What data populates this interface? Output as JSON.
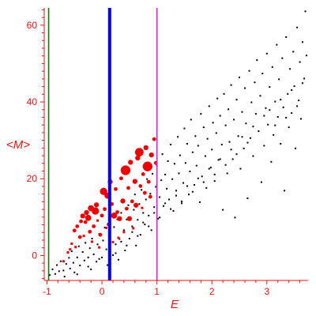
{
  "chart_data": {
    "type": "scatter",
    "title": "",
    "xlabel": "E",
    "ylabel": "<M>",
    "xlim": [
      -1.05,
      3.75
    ],
    "ylim": [
      -6.5,
      64.5
    ],
    "x_ticks": [
      -1,
      0,
      1,
      2,
      3
    ],
    "y_ticks": [
      0,
      20,
      40,
      60
    ],
    "grid": false,
    "legend": "none",
    "colors": {
      "axis": "#ee1111",
      "highlight_points": "#ee0000",
      "black_points": "#000000",
      "green_line": "#117711",
      "blue_line": "#0000ee",
      "magenta_line": "#ee11ee"
    },
    "vertical_lines": [
      {
        "x": -0.97,
        "color": "#117711",
        "width": "thin"
      },
      {
        "x": 0.14,
        "color": "#0000ee",
        "width": "thick"
      },
      {
        "x": 1.0,
        "color": "#ee11ee",
        "width": "thin"
      }
    ],
    "series": [
      {
        "color": "#ee0000",
        "points": [
          [
            -0.7,
            -1.5,
            1
          ],
          [
            -0.62,
            0.8,
            1
          ],
          [
            -0.58,
            1.6,
            1
          ],
          [
            -0.55,
            3.1,
            1
          ],
          [
            -0.5,
            6.5,
            2
          ],
          [
            -0.48,
            2.2,
            1
          ],
          [
            -0.45,
            7.6,
            2
          ],
          [
            -0.4,
            4.8,
            2
          ],
          [
            -0.38,
            8.9,
            2
          ],
          [
            -0.35,
            10.3,
            3
          ],
          [
            -0.33,
            5.1,
            1
          ],
          [
            -0.3,
            8.7,
            2
          ],
          [
            -0.28,
            11.2,
            3
          ],
          [
            -0.25,
            9.8,
            4
          ],
          [
            -0.22,
            6.2,
            2
          ],
          [
            -0.2,
            12.3,
            4
          ],
          [
            -0.18,
            3.6,
            1
          ],
          [
            -0.15,
            7.6,
            2
          ],
          [
            -0.12,
            11.6,
            5
          ],
          [
            -0.1,
            13.2,
            3
          ],
          [
            -0.08,
            9.1,
            1
          ],
          [
            -0.05,
            2.1,
            1
          ],
          [
            -0.03,
            5.4,
            2
          ],
          [
            0.0,
            10.4,
            2
          ],
          [
            0.03,
            16.7,
            5
          ],
          [
            0.05,
            12.1,
            2
          ],
          [
            0.08,
            7.2,
            1
          ],
          [
            0.1,
            15.6,
            4
          ],
          [
            0.12,
            8.1,
            2
          ],
          [
            0.15,
            19.2,
            3
          ],
          [
            0.18,
            13.4,
            2
          ],
          [
            0.2,
            3.5,
            1
          ],
          [
            0.22,
            10.4,
            4
          ],
          [
            0.25,
            17.3,
            2
          ],
          [
            0.28,
            11.3,
            2
          ],
          [
            0.3,
            4.6,
            1
          ],
          [
            0.32,
            9.6,
            3
          ],
          [
            0.35,
            20.1,
            2
          ],
          [
            0.38,
            14.2,
            3
          ],
          [
            0.4,
            6.1,
            1
          ],
          [
            0.43,
            22.2,
            7
          ],
          [
            0.45,
            12.2,
            2
          ],
          [
            0.48,
            17.6,
            2
          ],
          [
            0.5,
            9.6,
            3
          ],
          [
            0.52,
            24.3,
            3
          ],
          [
            0.55,
            14.1,
            2
          ],
          [
            0.57,
            7.1,
            1
          ],
          [
            0.6,
            19.3,
            3
          ],
          [
            0.62,
            13.1,
            3
          ],
          [
            0.65,
            25.4,
            3
          ],
          [
            0.68,
            26.9,
            6
          ],
          [
            0.7,
            18.1,
            2
          ],
          [
            0.73,
            12.4,
            1
          ],
          [
            0.75,
            21.2,
            2
          ],
          [
            0.78,
            16.3,
            2
          ],
          [
            0.8,
            28.1,
            3
          ],
          [
            0.83,
            23.2,
            7
          ],
          [
            0.85,
            19.2,
            2
          ],
          [
            0.88,
            15.3,
            2
          ],
          [
            0.9,
            26.2,
            3
          ],
          [
            0.95,
            30.3,
            2
          ],
          [
            0.98,
            24.1,
            2
          ]
        ]
      },
      {
        "color": "#000000",
        "points": [
          [
            -0.95,
            -5.1
          ],
          [
            -0.9,
            -3.6
          ],
          [
            -0.85,
            -4.8
          ],
          [
            -0.82,
            -2.5
          ],
          [
            -0.78,
            -4.1
          ],
          [
            -0.75,
            -1.5
          ],
          [
            -0.7,
            -3.9
          ],
          [
            -0.68,
            -5.5
          ],
          [
            -0.65,
            -2.2
          ],
          [
            -0.6,
            -0.6
          ],
          [
            -0.58,
            -3.4
          ],
          [
            -0.55,
            1.1
          ],
          [
            -0.52,
            -1.9
          ],
          [
            -0.5,
            -4.4
          ],
          [
            -0.45,
            -0.5
          ],
          [
            -0.42,
            2.4
          ],
          [
            -0.4,
            -2.6
          ],
          [
            -0.35,
            0.9
          ],
          [
            -0.32,
            -1.3
          ],
          [
            -0.3,
            3.3
          ],
          [
            -0.25,
            -0.5
          ],
          [
            -0.22,
            1.9
          ],
          [
            -0.2,
            -3.6
          ],
          [
            -0.18,
            4.4
          ],
          [
            -0.15,
            0.3
          ],
          [
            -0.1,
            -1.6
          ],
          [
            -0.08,
            2.9
          ],
          [
            -0.05,
            5.6
          ],
          [
            0.0,
            -0.5
          ],
          [
            0.02,
            3.9
          ],
          [
            0.05,
            7.3
          ],
          [
            0.08,
            1.6
          ],
          [
            0.1,
            -2.5
          ],
          [
            0.15,
            5.1
          ],
          [
            0.2,
            0.1
          ],
          [
            0.22,
            7.4
          ],
          [
            0.25,
            2.9
          ],
          [
            0.28,
            9.4
          ],
          [
            0.3,
            -1.1
          ],
          [
            0.32,
            4.3
          ],
          [
            0.35,
            11.1
          ],
          [
            0.4,
            6.6
          ],
          [
            0.42,
            1.3
          ],
          [
            0.45,
            9.4
          ],
          [
            0.48,
            13.1
          ],
          [
            0.5,
            4.4
          ],
          [
            0.55,
            7.6
          ],
          [
            0.58,
            11.9
          ],
          [
            0.6,
            15.9
          ],
          [
            0.62,
            2.6
          ],
          [
            0.65,
            9.3
          ],
          [
            0.68,
            13.4
          ],
          [
            0.7,
            5.4
          ],
          [
            0.72,
            17.1
          ],
          [
            0.75,
            11.1
          ],
          [
            0.78,
            8.1
          ],
          [
            0.8,
            14.6
          ],
          [
            0.82,
            19.9
          ],
          [
            0.85,
            10.4
          ],
          [
            0.88,
            16.1
          ],
          [
            0.9,
            6.6
          ],
          [
            0.92,
            21.3
          ],
          [
            0.95,
            12.6
          ],
          [
            0.98,
            17.9
          ],
          [
            1.0,
            23.4
          ],
          [
            1.02,
            9.6
          ],
          [
            1.05,
            15.2
          ],
          [
            1.08,
            19.6
          ],
          [
            1.1,
            26.4
          ],
          [
            1.12,
            12.9
          ],
          [
            1.15,
            21.1
          ],
          [
            1.18,
            17.4
          ],
          [
            1.2,
            24.6
          ],
          [
            1.22,
            14.6
          ],
          [
            1.25,
            28.9
          ],
          [
            1.28,
            19.9
          ],
          [
            1.3,
            11.6
          ],
          [
            1.32,
            23.9
          ],
          [
            1.35,
            16.9
          ],
          [
            1.38,
            30.9
          ],
          [
            1.4,
            21.4
          ],
          [
            1.42,
            26.1
          ],
          [
            1.45,
            13.6
          ],
          [
            1.48,
            18.9
          ],
          [
            1.5,
            33.1
          ],
          [
            1.52,
            24.1
          ],
          [
            1.55,
            29.1
          ],
          [
            1.58,
            15.9
          ],
          [
            1.6,
            21.9
          ],
          [
            1.62,
            35.4
          ],
          [
            1.65,
            26.9
          ],
          [
            1.68,
            18.4
          ],
          [
            1.7,
            31.1
          ],
          [
            1.72,
            23.4
          ],
          [
            1.75,
            28.6
          ],
          [
            1.78,
            13.9
          ],
          [
            1.8,
            36.9
          ],
          [
            1.82,
            20.6
          ],
          [
            1.85,
            33.4
          ],
          [
            1.88,
            25.9
          ],
          [
            1.9,
            17.6
          ],
          [
            1.92,
            30.4
          ],
          [
            1.95,
            38.9
          ],
          [
            1.98,
            22.9
          ],
          [
            2.0,
            27.6
          ],
          [
            2.02,
            34.6
          ],
          [
            2.05,
            19.4
          ],
          [
            2.08,
            31.9
          ],
          [
            2.1,
            40.9
          ],
          [
            2.12,
            24.9
          ],
          [
            2.15,
            36.4
          ],
          [
            2.18,
            28.9
          ],
          [
            2.2,
            11.9
          ],
          [
            2.22,
            42.1
          ],
          [
            2.25,
            33.9
          ],
          [
            2.28,
            21.4
          ],
          [
            2.3,
            38.1
          ],
          [
            2.32,
            29.6
          ],
          [
            2.35,
            44.4
          ],
          [
            2.38,
            25.1
          ],
          [
            2.4,
            35.4
          ],
          [
            2.42,
            9.9
          ],
          [
            2.45,
            40.6
          ],
          [
            2.48,
            31.1
          ],
          [
            2.5,
            46.4
          ],
          [
            2.52,
            22.6
          ],
          [
            2.55,
            37.4
          ],
          [
            2.58,
            27.9
          ],
          [
            2.6,
            43.6
          ],
          [
            2.62,
            34.4
          ],
          [
            2.65,
            14.9
          ],
          [
            2.68,
            48.1
          ],
          [
            2.7,
            30.6
          ],
          [
            2.72,
            39.9
          ],
          [
            2.75,
            25.9
          ],
          [
            2.78,
            45.1
          ],
          [
            2.8,
            36.9
          ],
          [
            2.82,
            50.9
          ],
          [
            2.85,
            32.4
          ],
          [
            2.88,
            41.6
          ],
          [
            2.9,
            19.1
          ],
          [
            2.92,
            47.4
          ],
          [
            2.95,
            28.6
          ],
          [
            2.98,
            38.4
          ],
          [
            3.0,
            52.6
          ],
          [
            3.02,
            34.1
          ],
          [
            3.05,
            43.9
          ],
          [
            3.08,
            24.4
          ],
          [
            3.1,
            49.1
          ],
          [
            3.12,
            31.4
          ],
          [
            3.15,
            40.1
          ],
          [
            3.18,
            54.9
          ],
          [
            3.2,
            36.1
          ],
          [
            3.22,
            45.9
          ],
          [
            3.25,
            29.1
          ],
          [
            3.28,
            51.4
          ],
          [
            3.3,
            38.6
          ],
          [
            3.32,
            16.9
          ],
          [
            3.35,
            56.9
          ],
          [
            3.38,
            42.1
          ],
          [
            3.4,
            33.4
          ],
          [
            3.42,
            48.6
          ],
          [
            3.45,
            37.1
          ],
          [
            3.48,
            53.1
          ],
          [
            3.5,
            44.1
          ],
          [
            3.52,
            27.9
          ],
          [
            3.55,
            59.4
          ],
          [
            3.58,
            40.4
          ],
          [
            3.6,
            50.4
          ],
          [
            3.62,
            35.6
          ],
          [
            3.65,
            55.6
          ],
          [
            3.68,
            46.1
          ],
          [
            3.7,
            63.6
          ],
          [
            3.72,
            52.1
          ],
          [
            3.05,
            37.9
          ],
          [
            2.95,
            36.4
          ],
          [
            2.75,
            33.6
          ],
          [
            2.55,
            30.9
          ],
          [
            2.35,
            27.6
          ],
          [
            2.15,
            25.1
          ],
          [
            1.95,
            22.6
          ],
          [
            1.75,
            20.1
          ],
          [
            1.55,
            18.1
          ],
          [
            1.35,
            15.6
          ],
          [
            1.15,
            13.6
          ],
          [
            0.95,
            11.1
          ],
          [
            0.75,
            8.6
          ],
          [
            0.55,
            6.1
          ],
          [
            0.35,
            3.6
          ],
          [
            0.15,
            1.6
          ],
          [
            -0.05,
            -0.9
          ],
          [
            -0.25,
            -2.9
          ],
          [
            -0.45,
            -4.9
          ],
          [
            3.25,
            40.6
          ],
          [
            3.45,
            43.1
          ],
          [
            3.65,
            44.9
          ],
          [
            3.15,
            33.9
          ],
          [
            3.35,
            35.9
          ],
          [
            3.55,
            38.9
          ],
          [
            2.65,
            29.4
          ],
          [
            2.45,
            26.4
          ],
          [
            2.25,
            23.6
          ],
          [
            2.05,
            21.1
          ],
          [
            1.85,
            19.1
          ],
          [
            1.65,
            16.6
          ],
          [
            1.45,
            14.1
          ],
          [
            1.25,
            12.1
          ],
          [
            1.05,
            9.9
          ],
          [
            0.85,
            7.6
          ],
          [
            0.65,
            5.1
          ],
          [
            0.45,
            2.6
          ],
          [
            0.25,
            0.6
          ]
        ]
      }
    ]
  }
}
